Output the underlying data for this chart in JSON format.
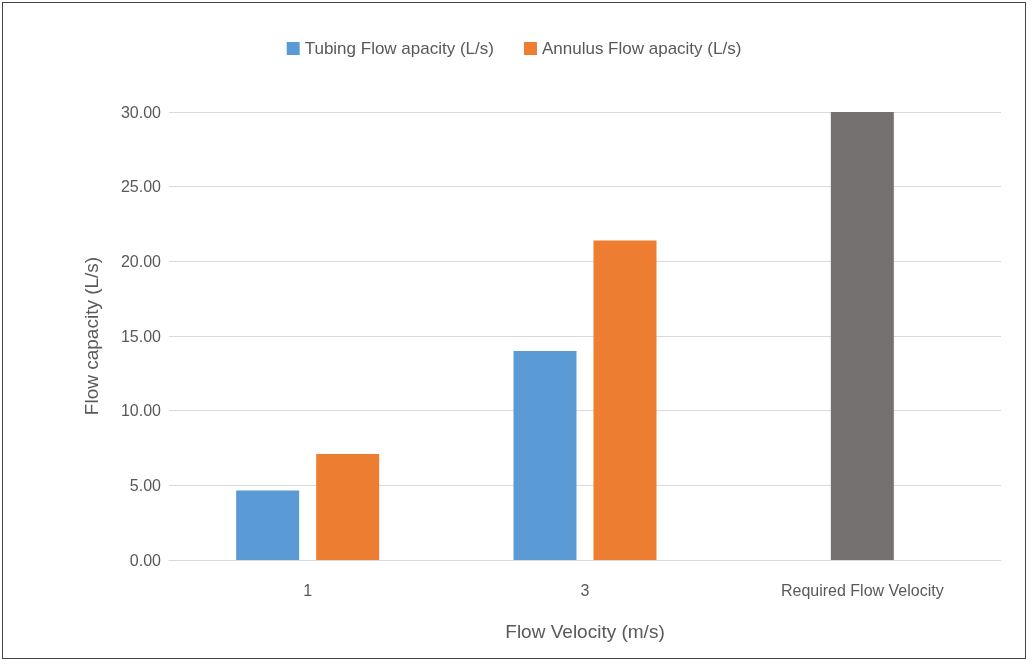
{
  "chart_data": {
    "type": "bar",
    "xlabel": "Flow Velocity (m/s)",
    "ylabel": "Flow capacity (L/s)",
    "categories": [
      "1",
      "3",
      "Required Flow Velocity"
    ],
    "series": [
      {
        "name": "Tubing Flow apacity (L/s)",
        "color": "#5b9bd5",
        "values": [
          4.65,
          14.0,
          null
        ]
      },
      {
        "name": "Annulus Flow apacity (L/s)",
        "color": "#ed7d31",
        "values": [
          7.1,
          21.4,
          null
        ]
      },
      {
        "color": "#767171",
        "values": [
          null,
          null,
          30.0
        ]
      }
    ],
    "ylim": [
      0,
      30
    ],
    "yticks": [
      {
        "value": 0,
        "label": "0.00"
      },
      {
        "value": 5,
        "label": "5.00"
      },
      {
        "value": 10,
        "label": "10.00"
      },
      {
        "value": 15,
        "label": "15.00"
      },
      {
        "value": 20,
        "label": "20.00"
      },
      {
        "value": 25,
        "label": "25.00"
      },
      {
        "value": 30,
        "label": "30.00"
      }
    ],
    "grid": "y",
    "legend": "top"
  }
}
